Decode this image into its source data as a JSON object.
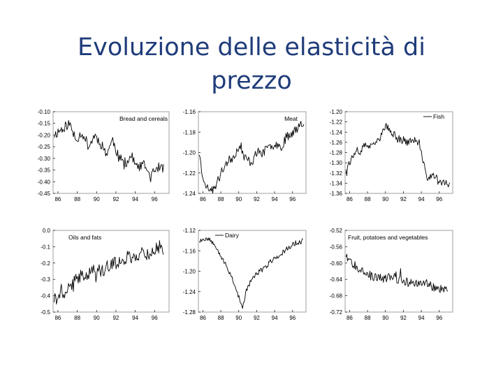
{
  "slide": {
    "title_line1": "Evoluzione delle elasticità di",
    "title_line2": "prezzo"
  },
  "colors": {
    "title": "#1f3c7a",
    "series": "#000000",
    "axis": "#888888"
  },
  "chart_data": [
    {
      "type": "line",
      "legend": "Bread and cereals",
      "legend_style": "text",
      "ylim": [
        -0.45,
        -0.1
      ],
      "yticks": [
        "-0.10",
        "-0.15",
        "-0.20",
        "-0.25",
        "-0.30",
        "-0.35",
        "-0.40",
        "-0.45"
      ],
      "xticks": [
        "86",
        "88",
        "90",
        "92",
        "94",
        "96"
      ],
      "xlim": [
        85.5,
        97.5
      ],
      "anchors": [
        [
          85.6,
          -0.2
        ],
        [
          86.5,
          -0.17
        ],
        [
          87.2,
          -0.15
        ],
        [
          87.8,
          -0.22
        ],
        [
          88.5,
          -0.19
        ],
        [
          89.2,
          -0.25
        ],
        [
          89.8,
          -0.2
        ],
        [
          90.5,
          -0.24
        ],
        [
          91.0,
          -0.28
        ],
        [
          91.7,
          -0.22
        ],
        [
          92.3,
          -0.3
        ],
        [
          93.0,
          -0.32
        ],
        [
          93.6,
          -0.29
        ],
        [
          94.2,
          -0.34
        ],
        [
          95.0,
          -0.33
        ],
        [
          95.6,
          -0.38
        ],
        [
          96.2,
          -0.34
        ],
        [
          97.0,
          -0.34
        ]
      ],
      "noise": 0.022,
      "seed": 11
    },
    {
      "type": "line",
      "legend": "Meat",
      "legend_style": "text",
      "ylim": [
        -1.24,
        -1.16
      ],
      "yticks": [
        "-1.16",
        "-1.18",
        "-1.20",
        "-1.22",
        "-1.24"
      ],
      "xticks": [
        "86",
        "88",
        "90",
        "92",
        "94",
        "96"
      ],
      "xlim": [
        85.5,
        97.5
      ],
      "anchors": [
        [
          85.6,
          -1.2
        ],
        [
          85.9,
          -1.22
        ],
        [
          86.5,
          -1.235
        ],
        [
          87.2,
          -1.237
        ],
        [
          87.8,
          -1.225
        ],
        [
          88.6,
          -1.21
        ],
        [
          89.3,
          -1.205
        ],
        [
          90.0,
          -1.195
        ],
        [
          90.7,
          -1.205
        ],
        [
          91.4,
          -1.21
        ],
        [
          92.0,
          -1.2
        ],
        [
          92.7,
          -1.2
        ],
        [
          93.4,
          -1.195
        ],
        [
          94.0,
          -1.19
        ],
        [
          94.7,
          -1.195
        ],
        [
          95.3,
          -1.185
        ],
        [
          96.0,
          -1.18
        ],
        [
          96.6,
          -1.175
        ],
        [
          97.0,
          -1.17
        ],
        [
          97.3,
          -1.172
        ]
      ],
      "noise": 0.0045,
      "seed": 23
    },
    {
      "type": "line",
      "legend": "Fish",
      "legend_style": "line",
      "ylim": [
        -1.36,
        -1.2
      ],
      "yticks": [
        "-1.20",
        "-1.22",
        "-1.24",
        "-1.26",
        "-1.28",
        "-1.30",
        "-1.32",
        "-1.34",
        "-1.36"
      ],
      "xticks": [
        "86",
        "88",
        "90",
        "92",
        "94",
        "96"
      ],
      "xlim": [
        85.5,
        97.5
      ],
      "anchors": [
        [
          85.6,
          -1.31
        ],
        [
          86.3,
          -1.29
        ],
        [
          87.0,
          -1.28
        ],
        [
          87.8,
          -1.265
        ],
        [
          88.5,
          -1.27
        ],
        [
          89.0,
          -1.26
        ],
        [
          89.6,
          -1.245
        ],
        [
          90.0,
          -1.225
        ],
        [
          90.5,
          -1.24
        ],
        [
          91.0,
          -1.245
        ],
        [
          91.7,
          -1.255
        ],
        [
          92.5,
          -1.26
        ],
        [
          93.2,
          -1.255
        ],
        [
          93.8,
          -1.265
        ],
        [
          94.2,
          -1.3
        ],
        [
          94.7,
          -1.33
        ],
        [
          95.3,
          -1.325
        ],
        [
          96.0,
          -1.335
        ],
        [
          96.6,
          -1.34
        ],
        [
          97.2,
          -1.345
        ]
      ],
      "noise": 0.007,
      "seed": 37
    },
    {
      "type": "line",
      "legend": "Oils and fats",
      "legend_style": "text",
      "ylim": [
        -0.5,
        0.0
      ],
      "yticks": [
        "0.0",
        "-0.1",
        "-0.2",
        "-0.3",
        "-0.4",
        "-0.5"
      ],
      "xticks": [
        "86",
        "88",
        "90",
        "92",
        "94",
        "96"
      ],
      "xlim": [
        85.5,
        97.5
      ],
      "anchors": [
        [
          85.6,
          -0.42
        ],
        [
          86.3,
          -0.4
        ],
        [
          87.0,
          -0.36
        ],
        [
          87.8,
          -0.31
        ],
        [
          88.5,
          -0.27
        ],
        [
          89.2,
          -0.26
        ],
        [
          89.8,
          -0.24
        ],
        [
          90.5,
          -0.25
        ],
        [
          91.2,
          -0.22
        ],
        [
          92.0,
          -0.2
        ],
        [
          92.7,
          -0.18
        ],
        [
          93.3,
          -0.16
        ],
        [
          94.0,
          -0.17
        ],
        [
          94.6,
          -0.13
        ],
        [
          95.3,
          -0.15
        ],
        [
          96.0,
          -0.12
        ],
        [
          96.5,
          -0.1
        ],
        [
          97.0,
          -0.13
        ]
      ],
      "noise": 0.04,
      "seed": 41
    },
    {
      "type": "line",
      "legend": "Dairy",
      "legend_style": "line",
      "ylim": [
        -1.28,
        -1.12
      ],
      "yticks": [
        "-1.12",
        "-1.16",
        "-1.20",
        "-1.24",
        "-1.28"
      ],
      "xticks": [
        "86",
        "88",
        "90",
        "92",
        "94",
        "96"
      ],
      "xlim": [
        85.5,
        97.5
      ],
      "anchors": [
        [
          85.6,
          -1.14
        ],
        [
          86.5,
          -1.135
        ],
        [
          87.3,
          -1.145
        ],
        [
          88.0,
          -1.17
        ],
        [
          88.6,
          -1.19
        ],
        [
          89.2,
          -1.21
        ],
        [
          89.6,
          -1.23
        ],
        [
          90.0,
          -1.25
        ],
        [
          90.4,
          -1.275
        ],
        [
          90.8,
          -1.24
        ],
        [
          91.3,
          -1.22
        ],
        [
          92.0,
          -1.205
        ],
        [
          92.8,
          -1.195
        ],
        [
          93.6,
          -1.18
        ],
        [
          94.5,
          -1.17
        ],
        [
          95.4,
          -1.155
        ],
        [
          96.3,
          -1.145
        ],
        [
          97.2,
          -1.14
        ]
      ],
      "noise": 0.005,
      "seed": 53
    },
    {
      "type": "line",
      "legend": "Fruit, potatoes and vegetables",
      "legend_style": "text",
      "ylim": [
        -0.72,
        -0.52
      ],
      "yticks": [
        "-0.52",
        "-0.56",
        "-0.60",
        "-0.64",
        "-0.68",
        "-0.72"
      ],
      "xticks": [
        "86",
        "88",
        "90",
        "92",
        "94",
        "96"
      ],
      "xlim": [
        85.5,
        97.5
      ],
      "anchors": [
        [
          85.6,
          -0.58
        ],
        [
          86.3,
          -0.6
        ],
        [
          87.0,
          -0.61
        ],
        [
          87.8,
          -0.62
        ],
        [
          88.5,
          -0.635
        ],
        [
          89.2,
          -0.635
        ],
        [
          90.0,
          -0.64
        ],
        [
          90.7,
          -0.63
        ],
        [
          91.4,
          -0.64
        ],
        [
          92.2,
          -0.645
        ],
        [
          93.0,
          -0.65
        ],
        [
          93.7,
          -0.65
        ],
        [
          94.4,
          -0.645
        ],
        [
          95.0,
          -0.655
        ],
        [
          95.6,
          -0.665
        ],
        [
          96.3,
          -0.665
        ],
        [
          97.0,
          -0.67
        ]
      ],
      "noise": 0.011,
      "seed": 67
    }
  ]
}
